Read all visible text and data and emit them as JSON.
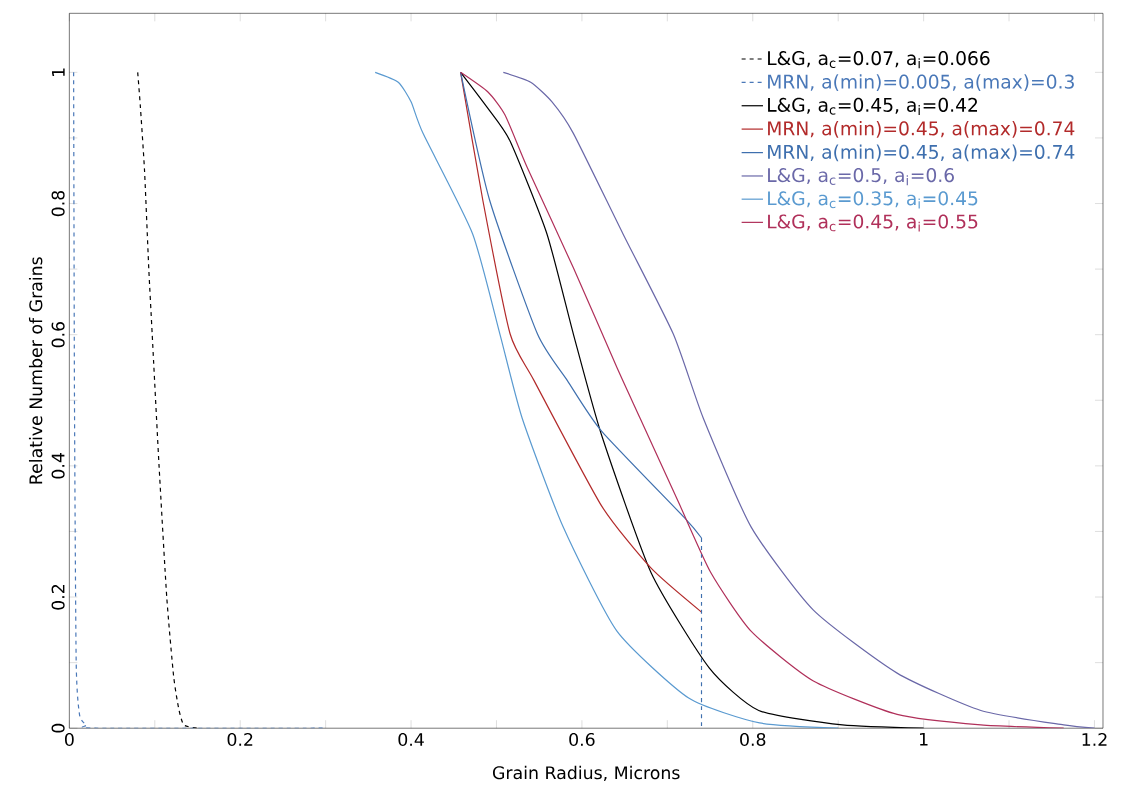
{
  "chart_data": {
    "type": "line",
    "xlabel": "Grain Radius, Microns",
    "ylabel": "Relative Number of Grains",
    "xlim": [
      0,
      1.21
    ],
    "ylim": [
      0,
      1.09
    ],
    "xticks": [
      0,
      {
        "value": 0.1,
        "label": null
      },
      0.2,
      {
        "value": 0.3,
        "label": null
      },
      0.4,
      {
        "value": 0.5,
        "label": null
      },
      0.6,
      {
        "value": 0.7,
        "label": null
      },
      0.8,
      {
        "value": 0.9,
        "label": null
      },
      1,
      {
        "value": 1.1,
        "label": null
      },
      1.2
    ],
    "yticks": [
      0,
      {
        "value": 0.1,
        "label": null
      },
      0.2,
      {
        "value": 0.3,
        "label": null
      },
      0.4,
      {
        "value": 0.5,
        "label": null
      },
      0.6,
      {
        "value": 0.7,
        "label": null
      },
      0.8,
      {
        "value": 0.9,
        "label": null
      },
      1
    ],
    "legend": "top right",
    "series": [
      {
        "name": "L&G, a$_{c}$=0.07, a$_{i}$=0.066",
        "color": "#000000",
        "line_style": "dashed",
        "x": [
          0.08,
          0.083,
          0.088,
          0.093,
          0.097,
          0.105,
          0.114,
          0.122,
          0.128,
          0.134,
          0.15
        ],
        "values": [
          1,
          0.95,
          0.85,
          0.7,
          0.6,
          0.4,
          0.2,
          0.08,
          0.03,
          0.005,
          0
        ]
      },
      {
        "name": "MRN, a(min)=0.005, a(max)=0.3",
        "color": "#4a78b8",
        "line_style": "dashed",
        "x": [
          0.005,
          0.006,
          0.008,
          0.012,
          0.02,
          0.03,
          0.3
        ],
        "values": [
          1,
          0.5,
          0.1,
          0.02,
          0.005,
          0,
          0
        ]
      },
      {
        "name": "L&G, a$_{c}$=0.45, a$_{i}$=0.42",
        "color": "#000000",
        "x": [
          0.458,
          0.49,
          0.516,
          0.559,
          0.59,
          0.623,
          0.681,
          0.749,
          0.807,
          0.905,
          1.0
        ],
        "values": [
          1,
          0.945,
          0.895,
          0.754,
          0.601,
          0.447,
          0.237,
          0.092,
          0.027,
          0.005,
          0
        ]
      },
      {
        "name": "MRN, a(min)=0.45, a(max)=0.74",
        "color": "#b22a2a",
        "x": [
          0.458,
          0.484,
          0.516,
          0.544,
          0.623,
          0.681,
          0.74
        ],
        "values": [
          1,
          0.805,
          0.601,
          0.53,
          0.339,
          0.244,
          0.177
        ]
      },
      {
        "name": "MRN, a(min)=0.45, a(max)=0.74",
        "color": "#3e6fae",
        "x": [
          0.458,
          0.492,
          0.548,
          0.583,
          0.623,
          0.72,
          0.74
        ],
        "values": [
          1,
          0.805,
          0.601,
          0.53,
          0.453,
          0.321,
          0.29
        ]
      },
      {
        "name": "L&G, a$_{c}$=0.5, a$_{i}$=0.6",
        "color": "#6a68a8",
        "x": [
          0.508,
          0.54,
          0.565,
          0.59,
          0.648,
          0.707,
          0.742,
          0.798,
          0.871,
          0.969,
          1.067,
          1.164,
          1.2
        ],
        "values": [
          1,
          0.985,
          0.955,
          0.907,
          0.754,
          0.601,
          0.473,
          0.307,
          0.18,
          0.084,
          0.027,
          0.005,
          0
        ]
      },
      {
        "name": "L&G, a$_{c}$=0.35, a$_{i}$=0.45",
        "color": "#5a9ad0",
        "x": [
          0.358,
          0.385,
          0.4,
          0.414,
          0.472,
          0.504,
          0.53,
          0.578,
          0.641,
          0.725,
          0.808,
          0.9
        ],
        "values": [
          1,
          0.985,
          0.955,
          0.907,
          0.754,
          0.601,
          0.473,
          0.307,
          0.148,
          0.046,
          0.008,
          0
        ]
      },
      {
        "name": "L&G, a$_{c}$=0.45, a$_{i}$=0.55",
        "color": "#b0305a",
        "x": [
          0.458,
          0.49,
          0.51,
          0.536,
          0.59,
          0.641,
          0.668,
          0.715,
          0.751,
          0.798,
          0.871,
          0.969,
          1.067,
          1.164
        ],
        "values": [
          1,
          0.97,
          0.935,
          0.855,
          0.702,
          0.55,
          0.473,
          0.339,
          0.237,
          0.148,
          0.072,
          0.021,
          0.005,
          0
        ]
      },
      {
        "color": "#3e6fae",
        "line_style": "dashed",
        "x": [
          0.74,
          0.74
        ],
        "values": [
          0.29,
          0
        ]
      }
    ]
  }
}
